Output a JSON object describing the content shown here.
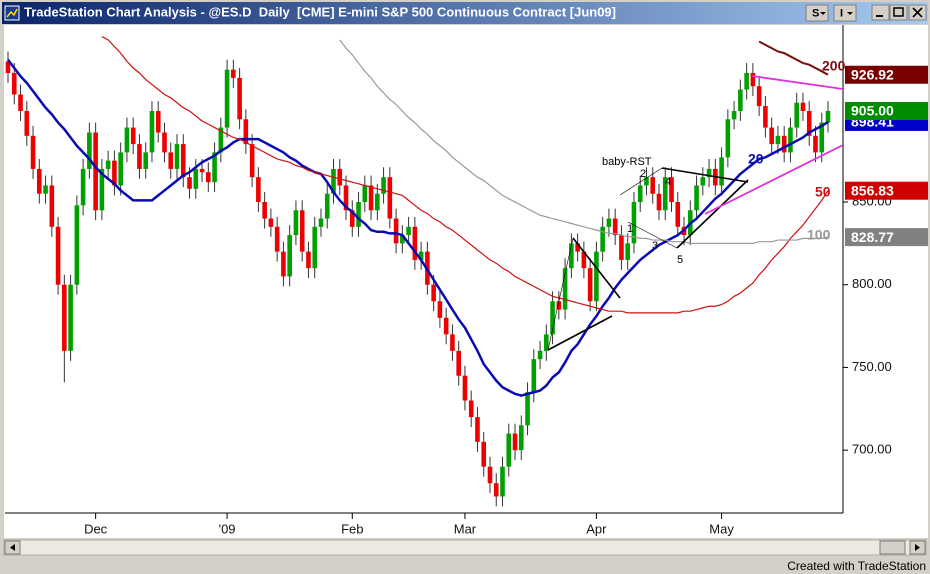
{
  "window": {
    "title": "TradeStation Chart Analysis - @ES.D  Daily  [CME] E-mini S&P 500 Continuous Contract [Jun09]",
    "buttons": [
      "S",
      "I"
    ],
    "footer": "Created with TradeStation"
  },
  "chart_data": {
    "type": "candlestick",
    "up_color": "#00a000",
    "down_color": "#ee0000",
    "grid": false,
    "ylim": [
      662,
      957
    ],
    "yticks": [
      {
        "value": 700,
        "label": "700.00"
      },
      {
        "value": 750,
        "label": "750.00"
      },
      {
        "value": 800,
        "label": "800.00"
      },
      {
        "value": 850,
        "label": "850.00"
      }
    ],
    "categories": [
      null,
      null,
      null,
      null,
      null,
      null,
      null,
      null,
      null,
      null,
      null,
      null,
      null,
      null,
      "Dec",
      null,
      null,
      null,
      null,
      null,
      null,
      null,
      null,
      null,
      null,
      null,
      null,
      null,
      null,
      null,
      null,
      null,
      null,
      null,
      null,
      "'09",
      null,
      null,
      null,
      null,
      null,
      null,
      null,
      null,
      null,
      null,
      null,
      null,
      null,
      null,
      null,
      null,
      null,
      null,
      null,
      "Feb",
      null,
      null,
      null,
      null,
      null,
      null,
      null,
      null,
      null,
      null,
      null,
      null,
      null,
      null,
      null,
      null,
      null,
      "Mar",
      null,
      null,
      null,
      null,
      null,
      null,
      null,
      null,
      null,
      null,
      null,
      null,
      null,
      null,
      null,
      null,
      null,
      null,
      null,
      null,
      "Apr",
      null,
      null,
      null,
      null,
      null,
      null,
      null,
      null,
      null,
      null,
      null,
      null,
      null,
      null,
      null,
      null,
      null,
      null,
      null,
      "May",
      null,
      null,
      null,
      null,
      null,
      null,
      null,
      null,
      null,
      null,
      null,
      null,
      null,
      null,
      null,
      null,
      null
    ],
    "open": [
      935,
      928,
      915,
      905,
      890,
      870,
      855,
      860,
      835,
      800,
      760,
      800,
      848,
      870,
      892,
      845,
      870,
      875,
      860,
      880,
      895,
      885,
      870,
      880,
      905,
      892,
      880,
      870,
      885,
      865,
      858,
      870,
      868,
      862,
      880,
      895,
      930,
      925,
      900,
      885,
      865,
      850,
      840,
      835,
      820,
      805,
      830,
      845,
      820,
      810,
      835,
      840,
      855,
      870,
      860,
      845,
      835,
      850,
      860,
      845,
      855,
      865,
      840,
      825,
      830,
      835,
      815,
      820,
      800,
      790,
      780,
      770,
      760,
      745,
      730,
      720,
      705,
      690,
      680,
      672,
      690,
      710,
      700,
      715,
      735,
      755,
      760,
      770,
      790,
      785,
      810,
      825,
      820,
      810,
      790,
      820,
      835,
      840,
      830,
      815,
      825,
      850,
      860,
      865,
      855,
      845,
      865,
      850,
      835,
      830,
      845,
      860,
      865,
      870,
      860,
      877,
      900,
      905,
      918,
      928,
      920,
      908,
      895,
      885,
      890,
      880,
      895,
      910,
      905,
      890,
      880,
      898
    ],
    "high": [
      941,
      934,
      921,
      911,
      896,
      876,
      866,
      866,
      841,
      806,
      806,
      854,
      876,
      898,
      898,
      876,
      881,
      881,
      886,
      901,
      901,
      891,
      886,
      911,
      911,
      898,
      886,
      891,
      891,
      871,
      876,
      876,
      874,
      886,
      901,
      936,
      936,
      931,
      906,
      891,
      871,
      856,
      846,
      841,
      826,
      836,
      851,
      851,
      826,
      841,
      846,
      861,
      876,
      876,
      866,
      851,
      856,
      866,
      866,
      861,
      871,
      871,
      846,
      836,
      841,
      841,
      826,
      826,
      806,
      796,
      786,
      776,
      766,
      751,
      736,
      726,
      711,
      696,
      686,
      696,
      716,
      716,
      721,
      741,
      761,
      766,
      776,
      796,
      796,
      816,
      831,
      831,
      826,
      816,
      826,
      841,
      846,
      846,
      836,
      831,
      856,
      866,
      871,
      871,
      861,
      871,
      871,
      856,
      841,
      851,
      866,
      871,
      876,
      876,
      883,
      906,
      911,
      924,
      934,
      934,
      926,
      914,
      901,
      896,
      896,
      901,
      916,
      916,
      911,
      896,
      904,
      911
    ],
    "low": [
      922,
      909,
      899,
      884,
      864,
      849,
      849,
      829,
      794,
      741,
      754,
      794,
      842,
      864,
      839,
      839,
      864,
      854,
      854,
      874,
      879,
      864,
      864,
      874,
      886,
      874,
      864,
      864,
      859,
      852,
      852,
      862,
      856,
      856,
      874,
      889,
      919,
      894,
      879,
      859,
      844,
      834,
      829,
      814,
      799,
      799,
      824,
      814,
      804,
      804,
      829,
      834,
      849,
      854,
      839,
      829,
      829,
      844,
      839,
      839,
      849,
      834,
      819,
      819,
      824,
      809,
      809,
      794,
      784,
      774,
      764,
      754,
      739,
      724,
      714,
      699,
      684,
      674,
      666,
      666,
      684,
      694,
      694,
      709,
      729,
      749,
      754,
      764,
      779,
      779,
      804,
      814,
      804,
      784,
      784,
      814,
      829,
      824,
      809,
      809,
      819,
      844,
      854,
      849,
      839,
      839,
      844,
      829,
      824,
      824,
      839,
      854,
      859,
      854,
      854,
      871,
      894,
      899,
      912,
      914,
      902,
      889,
      879,
      879,
      874,
      874,
      889,
      899,
      884,
      874,
      874,
      892
    ],
    "close": [
      928,
      915,
      905,
      890,
      870,
      855,
      860,
      835,
      800,
      760,
      800,
      848,
      870,
      892,
      845,
      870,
      875,
      860,
      880,
      895,
      885,
      870,
      880,
      905,
      892,
      880,
      870,
      885,
      865,
      858,
      870,
      868,
      862,
      880,
      895,
      930,
      925,
      900,
      885,
      865,
      850,
      840,
      835,
      820,
      805,
      830,
      845,
      820,
      810,
      835,
      840,
      855,
      870,
      860,
      845,
      835,
      850,
      860,
      845,
      855,
      865,
      840,
      825,
      830,
      835,
      815,
      820,
      800,
      790,
      780,
      770,
      760,
      745,
      730,
      720,
      705,
      690,
      680,
      672,
      690,
      710,
      700,
      715,
      735,
      755,
      760,
      770,
      790,
      785,
      810,
      825,
      820,
      810,
      790,
      820,
      835,
      840,
      830,
      815,
      825,
      850,
      860,
      865,
      855,
      845,
      865,
      850,
      835,
      830,
      845,
      860,
      865,
      870,
      860,
      877,
      900,
      905,
      918,
      928,
      920,
      908,
      895,
      885,
      890,
      880,
      895,
      910,
      905,
      890,
      880,
      898,
      905
    ],
    "moving_averages": [
      {
        "name": "20",
        "color": "#0a0ab4",
        "values": [
          936,
          931,
          926,
          922,
          917,
          912,
          907,
          903,
          898,
          894,
          889,
          884,
          880,
          876,
          871,
          867,
          864,
          861,
          857,
          854,
          851,
          851,
          851,
          851,
          854,
          857,
          860,
          863,
          866,
          868,
          871,
          874,
          876,
          878,
          881,
          883,
          886,
          888,
          888,
          888,
          888,
          886,
          884,
          882,
          880,
          877,
          875,
          872,
          870,
          868,
          867,
          862,
          856,
          851,
          847,
          844,
          840,
          837,
          833,
          832,
          832,
          831,
          831,
          830,
          825,
          820,
          815,
          809,
          803,
          797,
          791,
          785,
          779,
          774,
          767,
          760,
          752,
          747,
          742,
          738,
          736,
          734,
          733,
          734,
          735,
          736,
          739,
          744,
          747,
          753,
          760,
          764,
          770,
          776,
          781,
          787,
          792,
          798,
          803,
          807,
          811,
          815,
          818,
          821,
          824,
          826,
          828,
          830,
          833,
          837,
          840,
          844,
          848,
          852,
          855,
          859,
          863,
          867,
          870,
          873,
          876,
          877,
          879,
          881,
          883,
          885,
          887,
          889,
          892,
          894,
          896,
          898.41
        ]
      },
      {
        "name": "50",
        "color": "#d01010",
        "values": [
          null,
          null,
          null,
          null,
          null,
          null,
          null,
          null,
          null,
          null,
          null,
          null,
          null,
          null,
          null,
          950,
          948,
          944,
          940,
          935,
          931,
          928,
          924,
          921,
          918,
          915,
          913,
          910,
          907,
          905,
          902,
          899,
          897,
          895,
          893,
          891,
          889,
          888,
          886,
          884,
          882,
          880,
          878,
          876,
          875,
          874,
          872,
          871,
          869,
          868,
          867,
          866,
          865,
          864,
          863,
          862,
          861,
          860,
          859,
          858,
          857,
          856,
          855,
          854,
          851,
          848,
          845,
          843,
          840,
          838,
          835,
          833,
          830,
          827,
          824,
          821,
          818,
          815,
          813,
          810,
          808,
          805,
          803,
          801,
          799,
          797,
          795,
          793,
          792,
          791,
          790,
          789,
          788,
          787,
          786,
          785,
          784,
          784,
          784,
          783,
          783,
          783,
          783,
          783,
          783,
          783,
          783,
          783,
          784,
          784,
          785,
          786,
          787,
          787,
          788,
          790,
          793,
          795,
          798,
          801,
          806,
          810,
          815,
          819,
          823,
          828,
          832,
          836,
          841,
          846,
          851,
          856.83
        ]
      },
      {
        "name": "100",
        "color": "#999999",
        "values": [
          null,
          null,
          null,
          null,
          null,
          null,
          null,
          null,
          null,
          null,
          null,
          null,
          null,
          null,
          null,
          null,
          null,
          null,
          null,
          null,
          null,
          null,
          null,
          null,
          null,
          null,
          null,
          null,
          null,
          null,
          null,
          null,
          null,
          null,
          null,
          null,
          null,
          null,
          null,
          null,
          null,
          null,
          null,
          null,
          null,
          null,
          null,
          null,
          null,
          null,
          null,
          null,
          null,
          948,
          943,
          939,
          934,
          929,
          925,
          920,
          916,
          912,
          909,
          905,
          901,
          898,
          894,
          891,
          887,
          884,
          881,
          877,
          874,
          871,
          868,
          865,
          863,
          860,
          857,
          854,
          852,
          850,
          848,
          846,
          844,
          842,
          841,
          840,
          839,
          838,
          837,
          836,
          835,
          834,
          833,
          832,
          831,
          831,
          830,
          829,
          829,
          828,
          828,
          827,
          827,
          827,
          826,
          826,
          826,
          825,
          825,
          825,
          825,
          825,
          825,
          825,
          825,
          825,
          825,
          825,
          826,
          826,
          826,
          827,
          827,
          827,
          827,
          828,
          828,
          828,
          828,
          828.77
        ]
      },
      {
        "name": "200",
        "color": "#7a0c0c",
        "values": [
          null,
          null,
          null,
          null,
          null,
          null,
          null,
          null,
          null,
          null,
          null,
          null,
          null,
          null,
          null,
          null,
          null,
          null,
          null,
          null,
          null,
          null,
          null,
          null,
          null,
          null,
          null,
          null,
          null,
          null,
          null,
          null,
          null,
          null,
          null,
          null,
          null,
          null,
          null,
          null,
          null,
          null,
          null,
          null,
          null,
          null,
          null,
          null,
          null,
          null,
          null,
          null,
          null,
          null,
          null,
          null,
          null,
          null,
          null,
          null,
          null,
          null,
          null,
          null,
          null,
          null,
          null,
          null,
          null,
          null,
          null,
          null,
          null,
          null,
          null,
          null,
          null,
          null,
          null,
          null,
          null,
          null,
          null,
          null,
          null,
          null,
          null,
          null,
          null,
          null,
          null,
          null,
          null,
          null,
          null,
          null,
          null,
          null,
          null,
          null,
          null,
          null,
          null,
          null,
          null,
          null,
          null,
          null,
          null,
          null,
          null,
          null,
          null,
          null,
          null,
          null,
          null,
          null,
          null,
          null,
          947,
          945,
          943,
          941,
          940,
          938,
          936,
          934,
          933,
          931,
          929,
          926.92
        ]
      }
    ],
    "price_tags": [
      {
        "value": 926.92,
        "label": "926.92",
        "color": "#7a0000"
      },
      {
        "value": 898.41,
        "label": "898.41",
        "color": "#0000c8"
      },
      {
        "value": 905,
        "label": "905.00",
        "color": "#008c00"
      },
      {
        "value": 856.83,
        "label": "856.83",
        "color": "#d00000"
      },
      {
        "value": 828.77,
        "label": "828.77",
        "color": "#808080"
      }
    ],
    "annotations": [
      "baby-RST",
      "1",
      "2",
      "3",
      "4",
      "5"
    ]
  }
}
